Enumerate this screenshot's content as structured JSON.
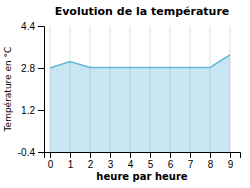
{
  "chart_data": {
    "type": "area",
    "title": "Evolution de la température",
    "x_label": "heure par heure",
    "y_label": "Température en °C",
    "x": [
      0,
      1,
      2,
      3,
      4,
      5,
      6,
      7,
      8,
      9
    ],
    "values": [
      2.8,
      3.05,
      2.82,
      2.82,
      2.82,
      2.82,
      2.82,
      2.82,
      2.82,
      3.3
    ],
    "color": "#60b8d8",
    "xlim": [
      -0.3,
      9.5
    ],
    "ylim": [
      -0.4,
      4.4
    ],
    "xticks": [
      0,
      1,
      2,
      3,
      4,
      5,
      6,
      7,
      8,
      9
    ],
    "yticks": [
      -0.4,
      1.2,
      2.8,
      4.4
    ],
    "grid": "x"
  }
}
